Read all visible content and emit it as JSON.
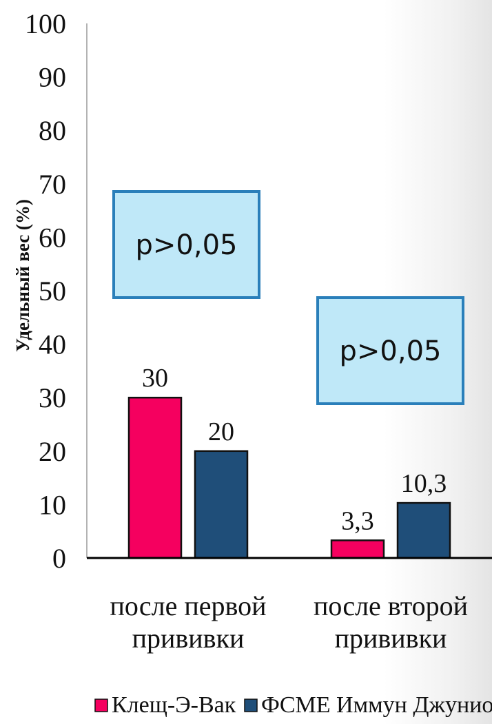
{
  "chart_data": {
    "type": "bar",
    "ylabel": "Удельный вес (%)",
    "xlabel": "",
    "ylim": [
      0,
      100
    ],
    "yticks": [
      0,
      10,
      20,
      30,
      40,
      50,
      60,
      70,
      80,
      90,
      100
    ],
    "categories": [
      {
        "line1": "после первой",
        "line2": "прививки"
      },
      {
        "line1": "после второй",
        "line2": "прививки"
      }
    ],
    "series": [
      {
        "name": "Клещ-Э-Вак",
        "color": "#f5005f",
        "values": [
          30,
          3.3
        ],
        "labels": [
          "30",
          "3,3"
        ]
      },
      {
        "name": "ФСМЕ Иммун Джуниор",
        "color": "#1f4e79",
        "values": [
          20,
          10.3
        ],
        "labels": [
          "20",
          "10,3"
        ]
      }
    ],
    "annotations": [
      {
        "text": "p>0,05",
        "category": 0
      },
      {
        "text": "p>0,05",
        "category": 1
      }
    ],
    "legend_position": "bottom",
    "grid": false
  }
}
